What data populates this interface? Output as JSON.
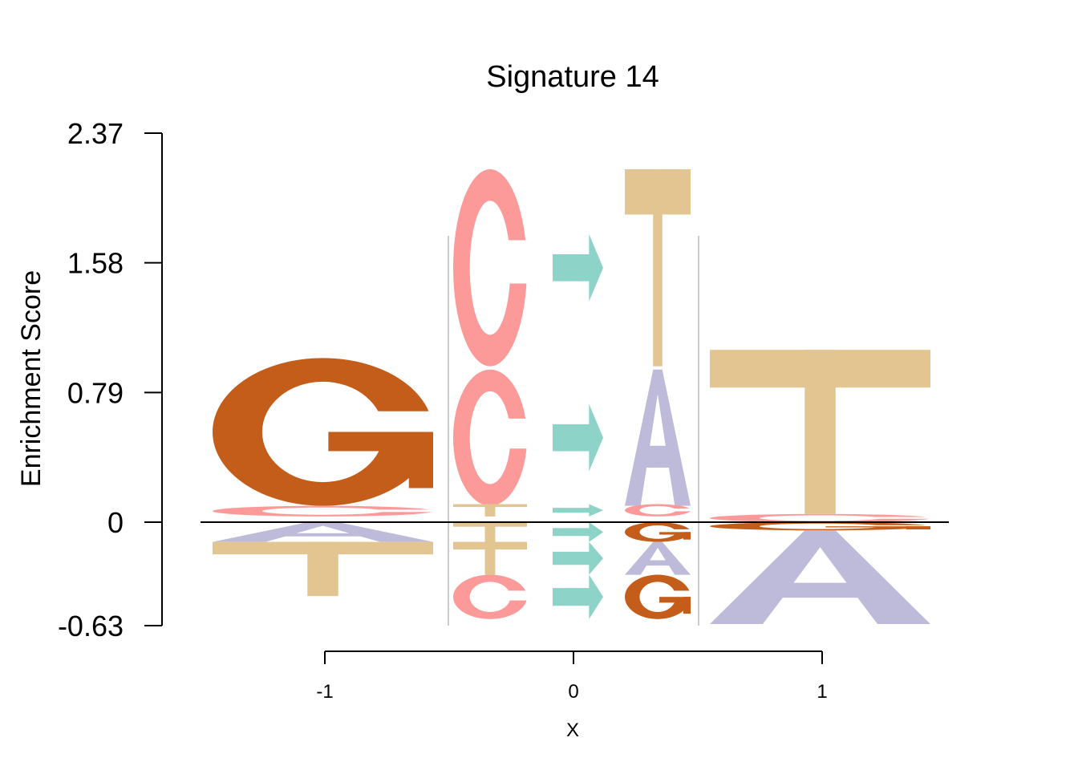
{
  "chart_data": {
    "type": "sequence-logo",
    "title": "Signature 14",
    "ylabel": "Enrichment Score",
    "xlabel": "X",
    "ylim": [
      -0.63,
      2.37
    ],
    "yticks": [
      "-0.63",
      "0",
      "0.79",
      "1.58",
      "2.37"
    ],
    "xticks": [
      "-1",
      "0",
      "1"
    ],
    "colors": {
      "A": "#BEBADA",
      "C": "#FB9A99",
      "G": "#C45C1A",
      "T": "#E3C592",
      "arrow": "#8DD3C7",
      "divider": "#CCCCCC"
    },
    "positions": [
      {
        "x": -1,
        "letters": [
          {
            "letter": "G",
            "bottom": 0.1,
            "top": 1.0
          },
          {
            "letter": "C",
            "bottom": 0.035,
            "top": 0.1
          },
          {
            "letter": "A",
            "bottom": -0.12,
            "top": 0.0
          },
          {
            "letter": "T",
            "bottom": -0.45,
            "top": -0.12
          }
        ]
      },
      {
        "x": 1,
        "letters": [
          {
            "letter": "T",
            "bottom": 0.05,
            "top": 1.05
          },
          {
            "letter": "C",
            "bottom": 0.0,
            "top": 0.05
          },
          {
            "letter": "G",
            "bottom": -0.05,
            "top": 0.0
          },
          {
            "letter": "A",
            "bottom": -0.62,
            "top": -0.05
          }
        ]
      }
    ],
    "substitutions": [
      {
        "from": "C",
        "to": "T",
        "bottom": 0.95,
        "top": 2.15
      },
      {
        "from": "C",
        "to": "A",
        "bottom": 0.1,
        "top": 0.93
      },
      {
        "from": "T",
        "to": "C",
        "bottom": 0.035,
        "top": 0.11
      },
      {
        "from": "T",
        "to": "G",
        "bottom": -0.12,
        "top": 0.0
      },
      {
        "from": "T",
        "to": "A",
        "bottom": -0.32,
        "top": -0.12
      },
      {
        "from": "C",
        "to": "G",
        "bottom": -0.59,
        "top": -0.32
      }
    ]
  }
}
